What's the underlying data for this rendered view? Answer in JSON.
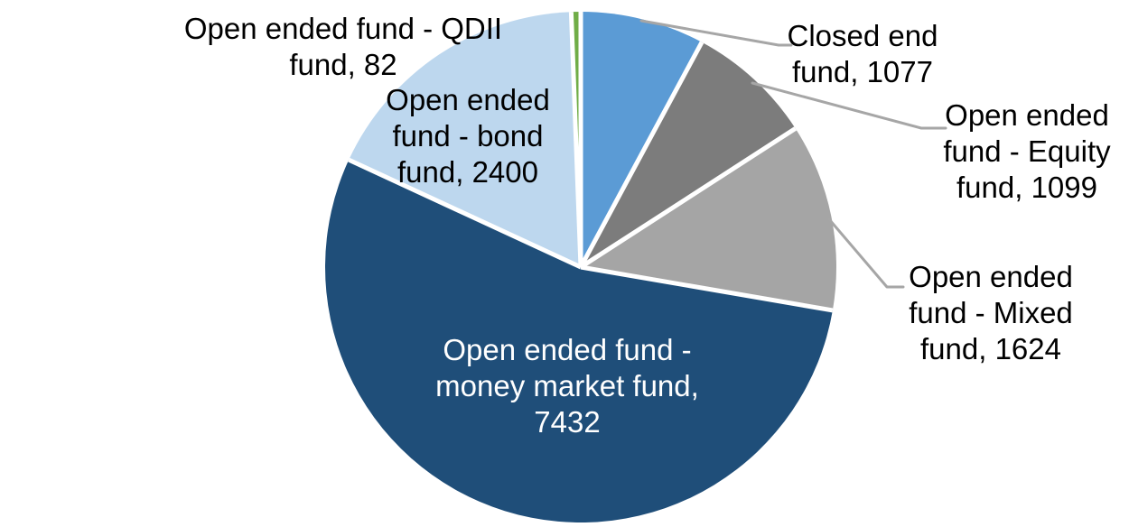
{
  "chart_data": {
    "type": "pie",
    "title": "",
    "background_color": "#FFFFFF",
    "separator_color": "#FFFFFF",
    "leader_line_color": "#A6A6A6",
    "start_angle_deg": 0,
    "direction": "clockwise",
    "total": 13714,
    "slices": [
      {
        "name": "Closed end fund",
        "value": 1077,
        "color": "#5B9BD5",
        "label_color": "#000000",
        "label_lines": [
          "Closed end",
          "fund, 1077"
        ]
      },
      {
        "name": "Open ended fund - Equity fund",
        "value": 1099,
        "color": "#7C7C7C",
        "label_color": "#000000",
        "label_lines": [
          "Open ended",
          "fund - Equity",
          "fund, 1099"
        ]
      },
      {
        "name": "Open ended fund - Mixed fund",
        "value": 1624,
        "color": "#A5A5A5",
        "label_color": "#000000",
        "label_lines": [
          "Open ended",
          "fund - Mixed",
          "fund, 1624"
        ]
      },
      {
        "name": "Open ended fund - money market fund",
        "value": 7432,
        "color": "#1F4E79",
        "label_color": "#FFFFFF",
        "label_lines": [
          "Open ended fund -",
          "money market fund,",
          "7432"
        ]
      },
      {
        "name": "Open ended fund - bond fund",
        "value": 2400,
        "color": "#BDD7EE",
        "label_color": "#000000",
        "label_lines": [
          "Open ended",
          "fund - bond",
          "fund, 2400"
        ]
      },
      {
        "name": "Open ended fund - QDII fund",
        "value": 82,
        "color": "#70AD47",
        "label_color": "#000000",
        "label_lines": [
          "Open ended fund - QDII",
          "fund, 82"
        ]
      }
    ]
  }
}
